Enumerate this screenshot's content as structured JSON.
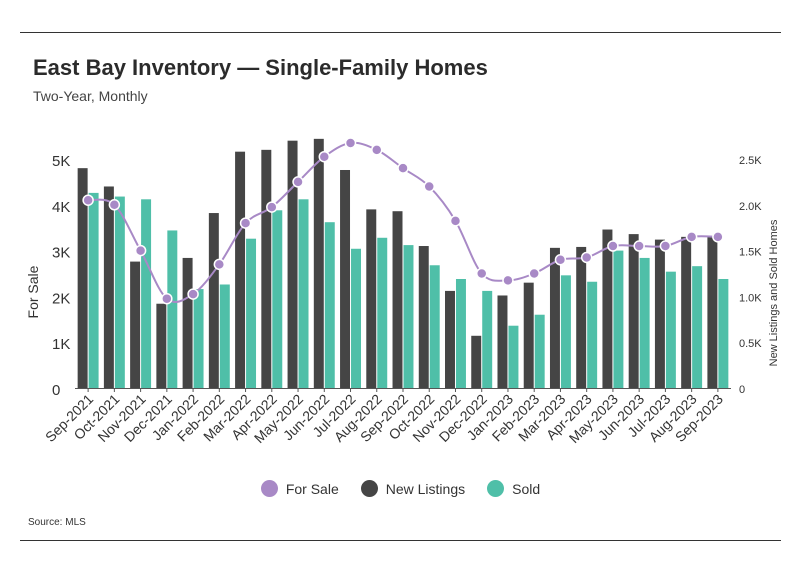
{
  "title": "East Bay Inventory — Single-Family Homes",
  "subtitle": "Two-Year, Monthly",
  "source": "Source: MLS",
  "colors": {
    "for_sale": "#a889c6",
    "new_listings": "#454545",
    "sold": "#4fbfa8",
    "axis": "#666666"
  },
  "chart_data": {
    "type": "bar",
    "title": "East Bay Inventory — Single-Family Homes",
    "subtitle": "Two-Year, Monthly",
    "ylabel": "For Sale",
    "y2label": "New Listings and Sold Homes",
    "ylim": [
      0,
      5000
    ],
    "y2lim": [
      0,
      2500
    ],
    "yticks": [
      "0",
      "1K",
      "2K",
      "3K",
      "4K",
      "5K"
    ],
    "y2ticks": [
      "0",
      "0.5K",
      "1.0K",
      "1.5K",
      "2.0K",
      "2.5K"
    ],
    "grid": false,
    "legend_position": "bottom",
    "categories": [
      "Sep-2021",
      "Oct-2021",
      "Nov-2021",
      "Dec-2021",
      "Jan-2022",
      "Feb-2022",
      "Mar-2022",
      "Apr-2022",
      "May-2022",
      "Jun-2022",
      "Jul-2022",
      "Aug-2022",
      "Sep-2022",
      "Oct-2022",
      "Nov-2022",
      "Dec-2022",
      "Jan-2023",
      "Feb-2023",
      "Mar-2023",
      "Apr-2023",
      "May-2023",
      "Jun-2023",
      "Jul-2023",
      "Aug-2023",
      "Sep-2023"
    ],
    "series": [
      {
        "name": "For Sale",
        "type": "line",
        "axis": "left",
        "values": [
          4100,
          4000,
          3000,
          1950,
          2050,
          2700,
          3600,
          3950,
          4500,
          5050,
          5350,
          5200,
          4800,
          4400,
          3650,
          2500,
          2350,
          2500,
          2800,
          2850,
          3100,
          3100,
          3100,
          3300,
          3300
        ]
      },
      {
        "name": "New Listings",
        "type": "bar",
        "axis": "right",
        "values": [
          2400,
          2200,
          1380,
          920,
          1420,
          1910,
          2580,
          2600,
          2700,
          2720,
          2380,
          1950,
          1930,
          1550,
          1060,
          570,
          1010,
          1150,
          1530,
          1540,
          1730,
          1680,
          1620,
          1650,
          1660
        ]
      },
      {
        "name": "Sold",
        "type": "bar",
        "axis": "right",
        "values": [
          2130,
          2090,
          2060,
          1720,
          1080,
          1130,
          1630,
          1940,
          2060,
          1810,
          1520,
          1640,
          1560,
          1340,
          1190,
          1060,
          680,
          800,
          1230,
          1160,
          1500,
          1420,
          1270,
          1330,
          1190
        ]
      }
    ]
  }
}
